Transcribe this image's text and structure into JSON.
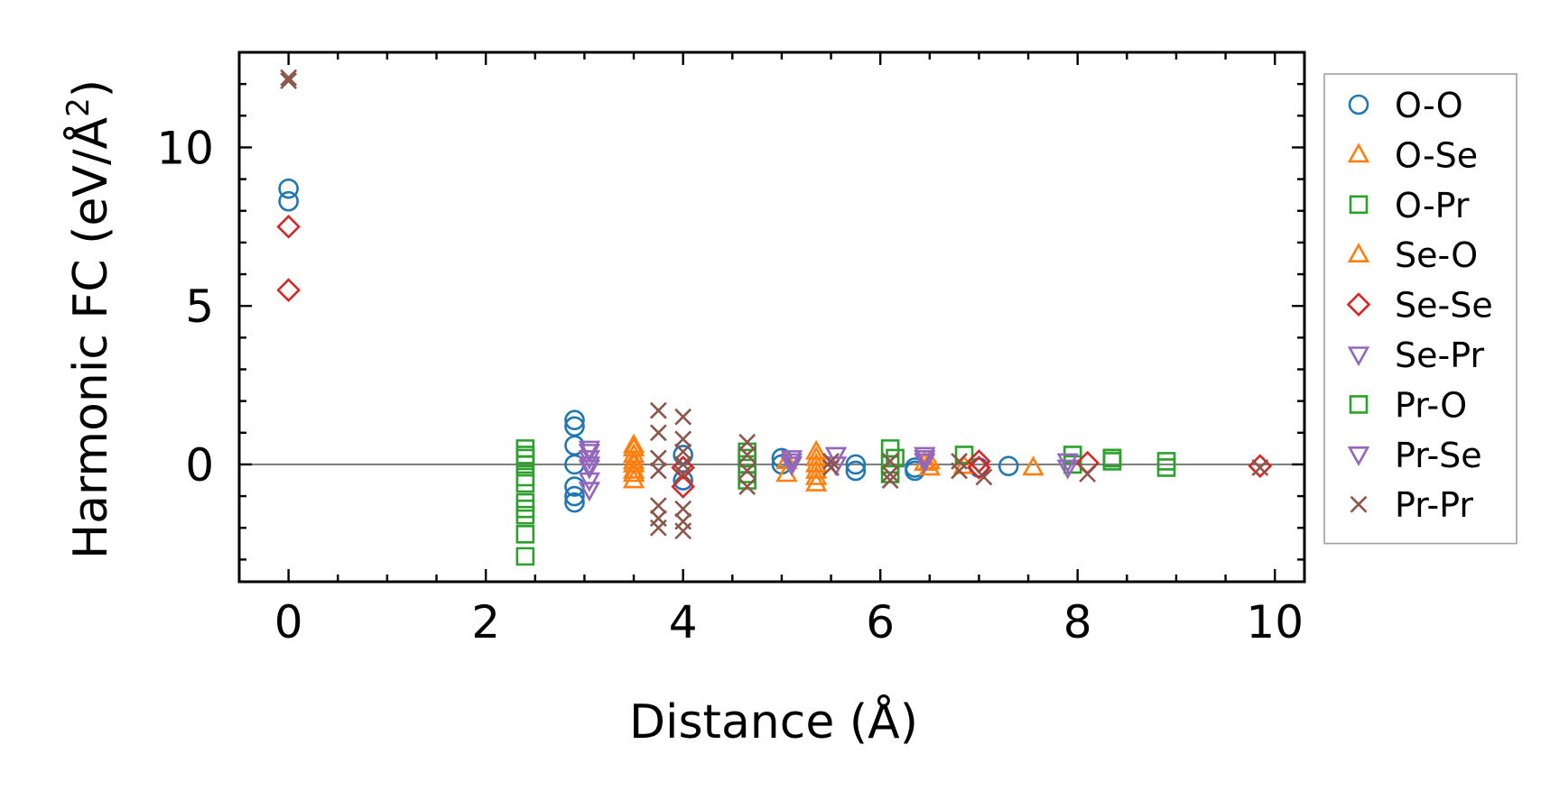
{
  "chart_data": {
    "type": "scatter",
    "title": "",
    "xlabel": "Distance (Å)",
    "ylabel_main": "Harmonic FC (eV/Å",
    "ylabel_sup": "2",
    "ylabel_close": ")",
    "xlim": [
      -0.5,
      10.3
    ],
    "ylim": [
      -3.7,
      13.0
    ],
    "xticks": [
      0,
      2,
      4,
      6,
      8,
      10
    ],
    "xtick_labels": [
      "0",
      "2",
      "4",
      "6",
      "8",
      "10"
    ],
    "yticks": [
      0,
      5,
      10
    ],
    "ytick_labels": [
      "0",
      "5",
      "10"
    ],
    "x_minor_step": 0.5,
    "y_minor_step": 1,
    "zero_line": true,
    "legend_position": "right-outside",
    "series": [
      {
        "name": "O-O",
        "marker": "circle",
        "color": "#1f77b4",
        "points": [
          [
            0,
            8.7
          ],
          [
            0,
            8.3
          ],
          [
            2.9,
            1.4
          ],
          [
            2.9,
            1.2
          ],
          [
            2.9,
            0.6
          ],
          [
            2.9,
            0.0
          ],
          [
            2.9,
            -0.7
          ],
          [
            2.9,
            -1.0
          ],
          [
            2.9,
            -1.2
          ],
          [
            4.0,
            0.3
          ],
          [
            4.0,
            -0.5
          ],
          [
            5.0,
            0.2
          ],
          [
            5.0,
            0.0
          ],
          [
            5.75,
            0.0
          ],
          [
            5.75,
            -0.2
          ],
          [
            6.35,
            -0.1
          ],
          [
            6.35,
            -0.2
          ],
          [
            7.0,
            -0.1
          ],
          [
            7.3,
            -0.05
          ]
        ]
      },
      {
        "name": "O-Se",
        "marker": "triangle-up",
        "color": "#ff7f0e",
        "points": [
          [
            3.5,
            0.6
          ],
          [
            3.5,
            0.3
          ],
          [
            3.5,
            0.0
          ],
          [
            3.5,
            -0.2
          ],
          [
            3.5,
            -0.5
          ],
          [
            5.05,
            0.1
          ],
          [
            5.05,
            -0.3
          ],
          [
            5.35,
            0.4
          ],
          [
            5.35,
            0.0
          ],
          [
            5.35,
            -0.4
          ],
          [
            5.35,
            -0.6
          ],
          [
            6.5,
            0.1
          ],
          [
            6.5,
            -0.1
          ],
          [
            6.85,
            -0.05
          ],
          [
            7.55,
            -0.1
          ]
        ]
      },
      {
        "name": "O-Pr",
        "marker": "square",
        "color": "#2ca02c",
        "points": [
          [
            2.4,
            0.5
          ],
          [
            2.4,
            0.3
          ],
          [
            2.4,
            0.0
          ],
          [
            2.4,
            -0.4
          ],
          [
            2.4,
            -1.2
          ],
          [
            2.4,
            -1.6
          ],
          [
            2.4,
            -2.2
          ],
          [
            2.4,
            -2.9
          ],
          [
            4.65,
            0.2
          ],
          [
            4.65,
            0.0
          ],
          [
            4.65,
            -0.3
          ],
          [
            6.1,
            0.5
          ],
          [
            6.1,
            0.0
          ],
          [
            6.1,
            -0.3
          ],
          [
            6.85,
            0.3
          ],
          [
            7.95,
            0.3
          ],
          [
            7.95,
            0.0
          ],
          [
            8.35,
            0.2
          ],
          [
            8.35,
            0.1
          ],
          [
            8.9,
            0.1
          ],
          [
            8.9,
            -0.1
          ]
        ]
      },
      {
        "name": "Se-O",
        "marker": "triangle-up",
        "color": "#ff7f0e",
        "points": [
          [
            3.5,
            0.5
          ],
          [
            3.5,
            0.1
          ],
          [
            3.5,
            -0.3
          ],
          [
            5.35,
            0.2
          ],
          [
            5.35,
            -0.2
          ],
          [
            6.45,
            0.05
          ]
        ]
      },
      {
        "name": "Se-Se",
        "marker": "diamond",
        "color": "#d62728",
        "points": [
          [
            0,
            7.5
          ],
          [
            0,
            5.5
          ],
          [
            4.0,
            -0.1
          ],
          [
            4.0,
            -0.7
          ],
          [
            7.0,
            0.1
          ],
          [
            7.0,
            -0.1
          ],
          [
            8.1,
            0.05
          ],
          [
            9.85,
            -0.05
          ]
        ]
      },
      {
        "name": "Se-Pr",
        "marker": "triangle-down",
        "color": "#9467bd",
        "points": [
          [
            3.05,
            0.5
          ],
          [
            3.05,
            0.2
          ],
          [
            3.05,
            -0.1
          ],
          [
            3.05,
            -0.5
          ],
          [
            3.05,
            -0.8
          ],
          [
            5.1,
            0.2
          ],
          [
            5.1,
            0.0
          ],
          [
            5.55,
            0.3
          ],
          [
            5.55,
            0.0
          ],
          [
            6.45,
            0.3
          ],
          [
            6.45,
            0.1
          ],
          [
            7.9,
            0.1
          ],
          [
            7.9,
            -0.1
          ]
        ]
      },
      {
        "name": "Pr-O",
        "marker": "square",
        "color": "#2ca02c",
        "points": [
          [
            2.4,
            0.2
          ],
          [
            2.4,
            -0.6
          ],
          [
            2.4,
            -1.4
          ],
          [
            4.65,
            0.4
          ],
          [
            4.65,
            -0.5
          ],
          [
            6.15,
            0.2
          ],
          [
            8.35,
            0.2
          ]
        ]
      },
      {
        "name": "Pr-Se",
        "marker": "triangle-down",
        "color": "#9467bd",
        "points": [
          [
            3.05,
            0.4
          ],
          [
            3.05,
            0.0
          ],
          [
            5.1,
            0.1
          ],
          [
            6.45,
            0.2
          ]
        ]
      },
      {
        "name": "Pr-Pr",
        "marker": "x",
        "color": "#8c564b",
        "points": [
          [
            0,
            12.2
          ],
          [
            0,
            12.1
          ],
          [
            3.75,
            1.7
          ],
          [
            3.75,
            1.0
          ],
          [
            3.75,
            0.2
          ],
          [
            3.75,
            -0.2
          ],
          [
            3.75,
            -1.3
          ],
          [
            3.75,
            -1.7
          ],
          [
            3.75,
            -2.0
          ],
          [
            4.0,
            1.5
          ],
          [
            4.0,
            0.8
          ],
          [
            4.0,
            0.4
          ],
          [
            4.0,
            0.0
          ],
          [
            4.0,
            -0.3
          ],
          [
            4.0,
            -1.4
          ],
          [
            4.0,
            -1.8
          ],
          [
            4.0,
            -2.1
          ],
          [
            4.65,
            0.7
          ],
          [
            4.65,
            0.3
          ],
          [
            4.65,
            -0.2
          ],
          [
            4.65,
            -0.7
          ],
          [
            5.5,
            0.1
          ],
          [
            5.5,
            -0.1
          ],
          [
            6.1,
            0.1
          ],
          [
            6.1,
            -0.3
          ],
          [
            6.1,
            -0.5
          ],
          [
            6.8,
            0.1
          ],
          [
            6.8,
            -0.2
          ],
          [
            7.05,
            -0.4
          ],
          [
            8.1,
            -0.3
          ],
          [
            9.85,
            -0.1
          ]
        ]
      }
    ]
  }
}
